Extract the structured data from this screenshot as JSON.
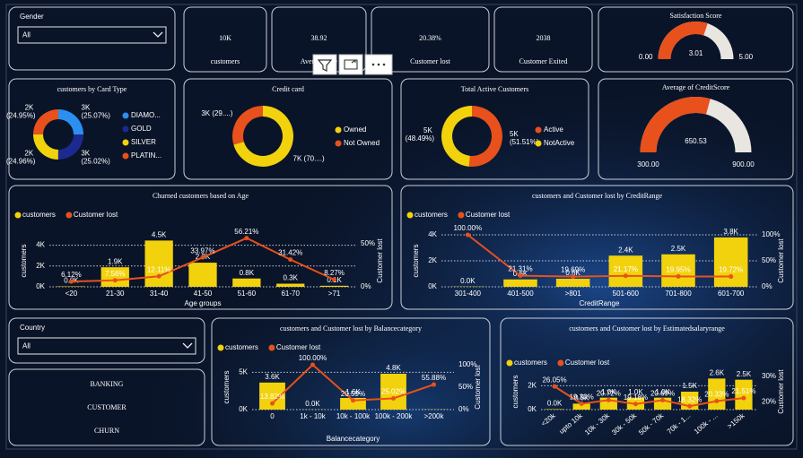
{
  "slicers": [
    {
      "label": "Gender",
      "selected": "All"
    },
    {
      "label": "Country",
      "selected": "All"
    }
  ],
  "kpis": [
    {
      "value": "10K",
      "label": "customers"
    },
    {
      "value": 38.92,
      "label": "Average Age"
    },
    {
      "value": "20.38%",
      "label": "Customer lost"
    },
    {
      "value": 2038,
      "label": "Customer  Exited"
    }
  ],
  "report_title": [
    "BANKING",
    "CUSTOMER",
    "CHURN"
  ],
  "chart_data": [
    {
      "type": "gauge",
      "title": "Satisfaction Score",
      "value": 3.01,
      "ylim": [
        0,
        5
      ],
      "yticks": [
        {
          "value": 0,
          "label": "0.00"
        },
        {
          "value": 5,
          "label": "5.00"
        }
      ],
      "color": "#e8501c",
      "track_color": "#e9e5e0"
    },
    {
      "type": "donut",
      "title": "customers by Card Type",
      "categories": [
        "DIAMO...",
        "GOLD",
        "SILVER",
        "PLATIN..."
      ],
      "values": [
        25.07,
        25.02,
        24.96,
        24.95
      ],
      "value_labels": [
        "3K (25.07%)",
        "3K (25.02%)",
        "2K (24.96%)",
        "2K (24.95%)"
      ],
      "colors": [
        "#2b8ff0",
        "#1b2a8f",
        "#f2d20c",
        "#e8501c"
      ]
    },
    {
      "type": "donut",
      "title": "Credit card",
      "categories": [
        "Owned",
        "Not Owned"
      ],
      "values": [
        70.55,
        29.45
      ],
      "value_labels": [
        "7K (70....)",
        "3K (29....)"
      ],
      "colors": [
        "#f2d20c",
        "#e8501c"
      ]
    },
    {
      "type": "donut",
      "title": "Total Active Customers",
      "categories": [
        "Active",
        "NotActive"
      ],
      "values": [
        51.51,
        48.49
      ],
      "value_labels": [
        "5K (51.51%)",
        "5K (48.49%)"
      ],
      "colors": [
        "#e8501c",
        "#f2d20c"
      ]
    },
    {
      "type": "gauge",
      "title": "Average of CreditScore",
      "value": 650.53,
      "ylim": [
        300,
        900
      ],
      "yticks": [
        {
          "value": 300,
          "label": "300.00"
        },
        {
          "value": 900,
          "label": "900.00"
        }
      ],
      "color": "#e8501c",
      "track_color": "#e9e5e0"
    },
    {
      "type": "combo",
      "title": "Churned customers based on Age",
      "categories": [
        "<20",
        "21-30",
        "31-40",
        "41-50",
        "51-60",
        "61-70",
        ">71"
      ],
      "series": [
        {
          "name": "customers",
          "color": "#f2d20c",
          "values": [
            40,
            1880,
            4450,
            2320,
            800,
            300,
            100
          ],
          "value_labels": [
            "0.0K",
            "1.9K",
            "4.5K",
            "2.3K",
            "0.8K",
            "0.3K",
            "0.1K"
          ]
        },
        {
          "name": "Customer lost",
          "color": "#e8501c",
          "axis": "y2",
          "values": [
            6.12,
            7.56,
            12.11,
            33.97,
            56.21,
            31.42,
            8.27
          ],
          "value_labels": [
            "6.12%",
            "7.56%",
            "12.11%",
            "33.97%",
            "56.21%",
            "31.42%",
            "8.27%"
          ]
        }
      ],
      "ylim": [
        0,
        5000
      ],
      "yticks": [
        {
          "value": 0,
          "label": "0K"
        },
        {
          "value": 2000,
          "label": "2K"
        },
        {
          "value": 4000,
          "label": "4K"
        }
      ],
      "y2lim": [
        0,
        60
      ],
      "y2ticks": [
        {
          "value": 0,
          "label": "0%"
        },
        {
          "value": 50,
          "label": "50%"
        }
      ],
      "y_label": "customers",
      "y2_label": "Customer lost",
      "x_label": "Age groups",
      "grid": true
    },
    {
      "type": "combo",
      "title": "customers and Customer lost by CreditRange",
      "categories": [
        "301-400",
        "401-500",
        ">801",
        "501-600",
        "701-800",
        "601-700"
      ],
      "series": [
        {
          "name": "customers",
          "color": "#f2d20c",
          "values": [
            19,
            570,
            620,
            2400,
            2500,
            3800
          ],
          "value_labels": [
            "0.0K",
            "0.6K",
            "0.6K",
            "2.4K",
            "2.5K",
            "3.8K"
          ]
        },
        {
          "name": "Customer lost",
          "color": "#e8501c",
          "axis": "y2",
          "values": [
            100,
            21.31,
            19.69,
            21.17,
            19.95,
            19.72
          ],
          "value_labels": [
            "100.00%",
            "21.31%",
            "19.69%",
            "21.17%",
            "19.95%",
            "19.72%"
          ]
        }
      ],
      "ylim": [
        0,
        4000
      ],
      "yticks": [
        {
          "value": 0,
          "label": "0K"
        },
        {
          "value": 2000,
          "label": "2K"
        },
        {
          "value": 4000,
          "label": "4K"
        }
      ],
      "y2lim": [
        0,
        100
      ],
      "y2ticks": [
        {
          "value": 0,
          "label": "0%"
        },
        {
          "value": 50,
          "label": "50%"
        },
        {
          "value": 100,
          "label": "100%"
        }
      ],
      "y_label": "customers",
      "y2_label": "Customer lost",
      "x_label": "CreditRange",
      "grid": true
    },
    {
      "type": "combo",
      "title": "customers and Customer lost by Balancecategory",
      "categories": [
        "0",
        "1k - 10k",
        "10k - 100k",
        "100k - 200k",
        ">200k"
      ],
      "series": [
        {
          "name": "customers",
          "color": "#f2d20c",
          "values": [
            3620,
            20,
            1560,
            4800,
            30
          ],
          "value_labels": [
            "3.6K",
            "0.0K",
            "1.6K",
            "4.8K",
            null
          ]
        },
        {
          "name": "Customer lost",
          "color": "#e8501c",
          "axis": "y2",
          "values": [
            13.82,
            100,
            20.59,
            25.02,
            55.88
          ],
          "value_labels": [
            "13.82%",
            "100.00%",
            "20.59%",
            "25.02%",
            "55.88%"
          ]
        }
      ],
      "ylim": [
        0,
        6000
      ],
      "yticks": [
        {
          "value": 0,
          "label": "0K"
        },
        {
          "value": 5000,
          "label": "5K"
        }
      ],
      "y2lim": [
        0,
        100
      ],
      "y2ticks": [
        {
          "value": 0,
          "label": "0%"
        },
        {
          "value": 50,
          "label": "50%"
        },
        {
          "value": 100,
          "label": "100%"
        }
      ],
      "y_label": "customers",
      "y2_label": "Customer lost",
      "x_label": "Balancecategory",
      "grid": true
    },
    {
      "type": "combo",
      "title": "customers and Customer lost by Estimatedsalaryrange",
      "categories": [
        "<20k",
        "upto 10k",
        "10k - 30k",
        "30k - 50k",
        "50k - 70k",
        "70k - 1...",
        "100k - ...",
        ">150k"
      ],
      "series": [
        {
          "name": "customers",
          "color": "#f2d20c",
          "values": [
            40,
            500,
            1000,
            1000,
            1000,
            1500,
            2600,
            2500
          ],
          "value_labels": [
            "0.0K",
            "0.5K",
            "1.0K",
            "1.0K",
            "1.0K",
            "1.5K",
            "2.6K",
            "2.5K"
          ]
        },
        {
          "name": "Customer lost",
          "color": "#e8501c",
          "axis": "y2",
          "values": [
            26.05,
            19.3,
            20.72,
            19.18,
            20.69,
            18.32,
            20.33,
            21.51
          ],
          "value_labels": [
            "26.05%",
            "19.30%",
            "20.72%",
            "19.18%",
            "20.69%",
            "18.32%",
            "20.33%",
            "21.51%"
          ]
        }
      ],
      "ylim": [
        0,
        3000
      ],
      "yticks": [
        {
          "value": 0,
          "label": "0K"
        },
        {
          "value": 2000,
          "label": "2K"
        }
      ],
      "y2lim": [
        17,
        31
      ],
      "y2ticks": [
        {
          "value": 20,
          "label": "20%"
        },
        {
          "value": 30,
          "label": "30%"
        }
      ],
      "y_label": "customers",
      "y2_label": "Customer lost",
      "grid": true
    }
  ]
}
